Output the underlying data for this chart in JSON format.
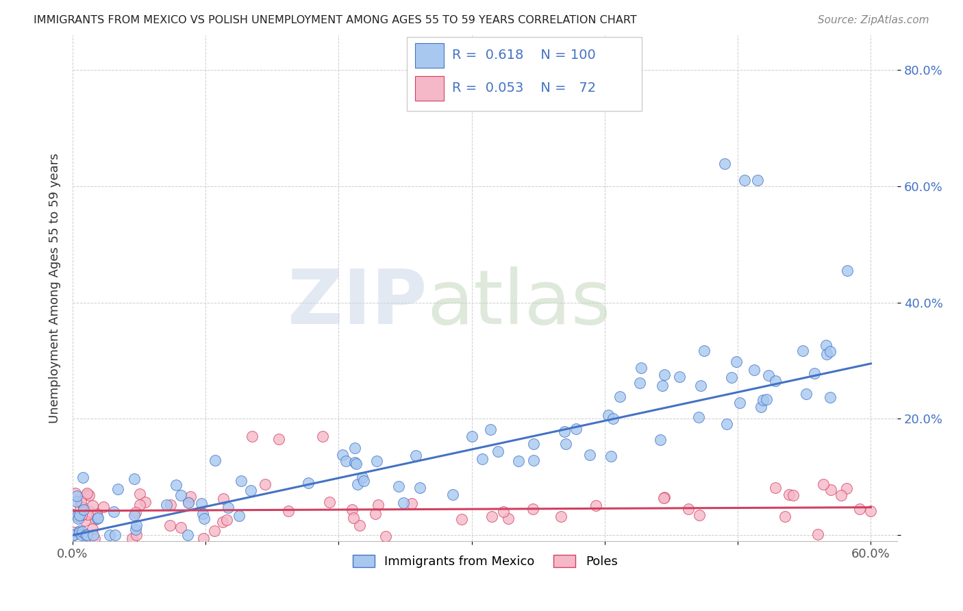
{
  "title": "IMMIGRANTS FROM MEXICO VS POLISH UNEMPLOYMENT AMONG AGES 55 TO 59 YEARS CORRELATION CHART",
  "source": "Source: ZipAtlas.com",
  "ylabel": "Unemployment Among Ages 55 to 59 years",
  "xlim": [
    0.0,
    0.62
  ],
  "ylim": [
    -0.01,
    0.86
  ],
  "xticks": [
    0.0,
    0.1,
    0.2,
    0.3,
    0.4,
    0.5,
    0.6
  ],
  "xticklabels": [
    "0.0%",
    "",
    "",
    "",
    "",
    "",
    "60.0%"
  ],
  "ytick_positions": [
    0.0,
    0.2,
    0.4,
    0.6,
    0.8
  ],
  "yticklabels_right": [
    "",
    "20.0%",
    "40.0%",
    "60.0%",
    "80.0%"
  ],
  "legend_label1": "Immigrants from Mexico",
  "legend_label2": "Poles",
  "R1": "0.618",
  "N1": "100",
  "R2": "0.053",
  "N2": "72",
  "color_mexico": "#a8c8f0",
  "color_poland": "#f5b8c8",
  "color_line_mexico": "#4472c4",
  "color_line_poland": "#d04060",
  "line_mex_x0": 0.0,
  "line_mex_y0": 0.0,
  "line_mex_x1": 0.6,
  "line_mex_y1": 0.295,
  "line_pol_x0": 0.0,
  "line_pol_y0": 0.042,
  "line_pol_x1": 0.6,
  "line_pol_y1": 0.048
}
